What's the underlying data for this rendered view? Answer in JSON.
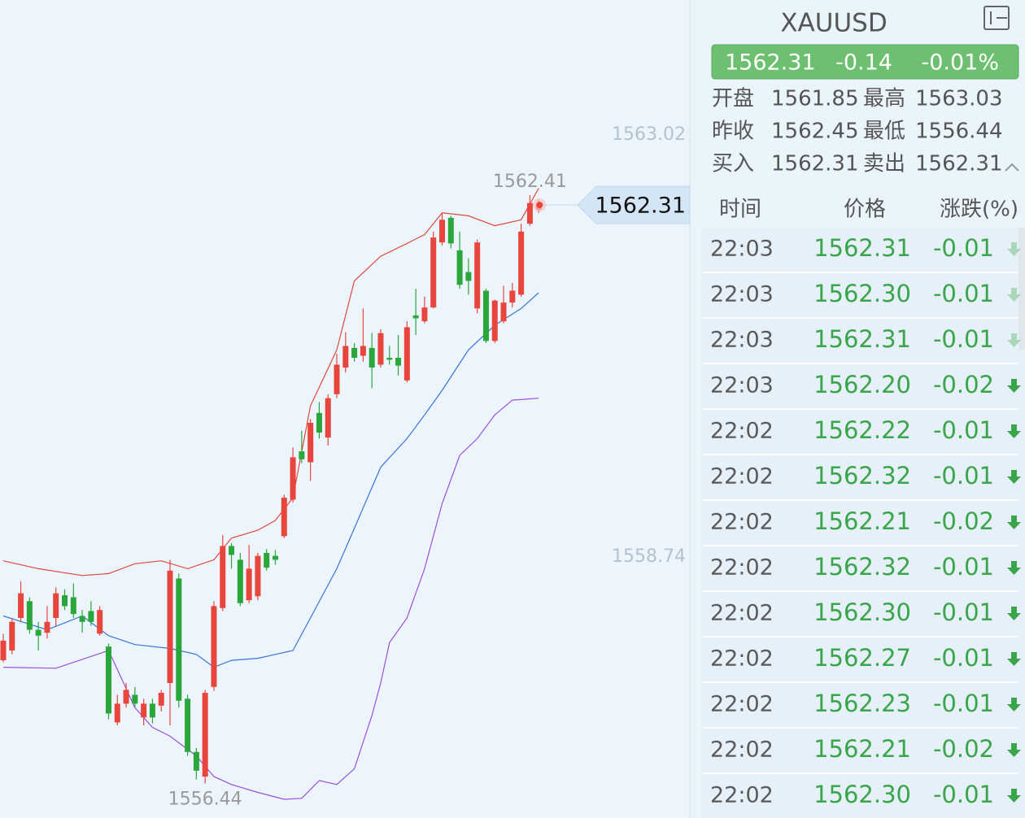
{
  "chart_data": {
    "type": "candlestick",
    "open": [
      1557.69,
      1557.79,
      1558.12,
      1558.29,
      1558.0,
      1557.97,
      1558.12,
      1558.35,
      1558.33,
      1558.14,
      1558.19,
      1557.96,
      1557.83,
      1557.06,
      1557.25,
      1557.34,
      1557.11,
      1557.25,
      1557.23,
      1557.46,
      1558.52,
      1557.3,
      1556.76,
      1556.51,
      1557.42,
      1558.22,
      1558.85,
      1558.71,
      1558.3,
      1558.34,
      1558.78,
      1558.75,
      1558.95,
      1559.32,
      1559.81,
      1559.7,
      1560.2,
      1559.95,
      1560.39,
      1560.66,
      1560.86,
      1560.78,
      1560.86,
      1560.69,
      1560.76,
      1560.76,
      1560.53,
      1561.19,
      1561.13,
      1561.27,
      1561.93,
      1562.18,
      1561.85,
      1561.63,
      1561.26,
      1561.44,
      1560.93,
      1561.13,
      1561.32,
      1561.4,
      1562.12,
      1562.26
    ],
    "high": [
      1557.96,
      1558.12,
      1558.49,
      1558.33,
      1558.08,
      1558.24,
      1558.43,
      1558.41,
      1558.47,
      1558.2,
      1558.29,
      1558.24,
      1557.86,
      1557.34,
      1557.46,
      1557.42,
      1557.3,
      1557.3,
      1557.39,
      1558.71,
      1558.57,
      1557.34,
      1556.8,
      1557.39,
      1558.29,
      1558.96,
      1558.88,
      1558.78,
      1558.86,
      1558.78,
      1558.82,
      1558.81,
      1559.37,
      1559.85,
      1560.02,
      1560.14,
      1560.31,
      1560.39,
      1560.8,
      1561.02,
      1560.91,
      1561.26,
      1561.01,
      1561.05,
      1560.88,
      1560.99,
      1561.13,
      1561.46,
      1561.38,
      1562.04,
      1562.23,
      1562.2,
      1562.04,
      1561.77,
      1561.96,
      1561.46,
      1561.35,
      1561.49,
      1561.52,
      1562.12,
      1562.41,
      1562.37
    ],
    "low": [
      1557.67,
      1557.75,
      1558.08,
      1557.96,
      1557.79,
      1557.91,
      1558.04,
      1558.2,
      1558.12,
      1557.97,
      1558.04,
      1557.94,
      1557.09,
      1557.03,
      1557.21,
      1557.21,
      1557.03,
      1557.05,
      1557.17,
      1557.03,
      1557.21,
      1556.72,
      1556.48,
      1556.44,
      1557.38,
      1558.19,
      1558.62,
      1558.24,
      1558.27,
      1558.3,
      1558.6,
      1558.66,
      1558.93,
      1559.29,
      1559.69,
      1559.51,
      1559.94,
      1559.87,
      1560.35,
      1560.61,
      1560.72,
      1560.72,
      1560.45,
      1560.66,
      1560.69,
      1560.58,
      1560.51,
      1560.99,
      1561.11,
      1561.26,
      1561.9,
      1561.87,
      1561.46,
      1561.4,
      1561.21,
      1560.91,
      1560.91,
      1561.11,
      1561.27,
      1561.38,
      1562.1,
      1562.23
    ],
    "close": [
      1557.89,
      1558.08,
      1558.37,
      1558.0,
      1557.94,
      1558.08,
      1558.37,
      1558.24,
      1558.16,
      1558.08,
      1558.08,
      1558.2,
      1557.15,
      1557.25,
      1557.39,
      1557.25,
      1557.25,
      1557.11,
      1557.36,
      1558.6,
      1557.28,
      1556.76,
      1556.57,
      1557.36,
      1558.24,
      1558.85,
      1558.76,
      1558.27,
      1558.62,
      1558.75,
      1558.63,
      1558.71,
      1559.34,
      1559.75,
      1559.73,
      1560.1,
      1560.0,
      1560.35,
      1560.69,
      1560.88,
      1560.76,
      1560.88,
      1560.66,
      1561.01,
      1560.74,
      1560.68,
      1561.07,
      1561.16,
      1561.27,
      1561.98,
      1562.16,
      1561.92,
      1561.5,
      1561.54,
      1561.93,
      1560.93,
      1561.34,
      1561.32,
      1561.44,
      1562.04,
      1562.33,
      1562.31
    ],
    "up_color": "#e8453c",
    "down_color": "#2aa63a",
    "bands": [
      {
        "color": "#e0473a",
        "x": [
          0,
          4,
          9,
          12,
          15,
          18,
          21,
          24,
          26,
          29,
          31,
          33,
          35,
          38,
          40,
          43,
          46,
          48,
          50,
          53,
          56,
          59,
          61
        ],
        "values": [
          1558.7,
          1558.62,
          1558.55,
          1558.57,
          1558.67,
          1558.7,
          1558.62,
          1558.71,
          1558.93,
          1559.01,
          1559.11,
          1559.34,
          1560.27,
          1560.84,
          1561.54,
          1561.79,
          1561.92,
          1562.01,
          1562.23,
          1562.2,
          1562.1,
          1562.16,
          1562.48
        ]
      },
      {
        "color": "#3a73d9",
        "x": [
          0,
          5,
          9,
          12,
          15,
          19,
          22,
          24,
          26,
          29,
          31,
          33,
          35,
          38,
          40,
          43,
          46,
          48,
          50,
          53,
          56,
          59,
          61
        ],
        "values": [
          1558.14,
          1558.0,
          1558.14,
          1557.94,
          1557.85,
          1557.81,
          1557.75,
          1557.62,
          1557.69,
          1557.71,
          1557.75,
          1557.79,
          1558.12,
          1558.62,
          1559.03,
          1559.65,
          1559.94,
          1560.18,
          1560.43,
          1560.84,
          1561.09,
          1561.26,
          1561.42
        ]
      },
      {
        "color": "#9b4fdc",
        "x": [
          0,
          6,
          12,
          15,
          17,
          19,
          22,
          24,
          26,
          29,
          32,
          34,
          36,
          38,
          40,
          42,
          43,
          44,
          46,
          48,
          50,
          52,
          54,
          56,
          58,
          61
        ],
        "values": [
          1557.62,
          1557.61,
          1557.79,
          1557.21,
          1557.01,
          1556.92,
          1556.72,
          1556.51,
          1556.43,
          1556.35,
          1556.28,
          1556.29,
          1556.47,
          1556.43,
          1556.59,
          1557.13,
          1557.46,
          1557.87,
          1558.12,
          1558.62,
          1559.28,
          1559.77,
          1559.94,
          1560.18,
          1560.33,
          1560.35
        ]
      }
    ],
    "ylim": [
      1556.09,
      1564.39
    ],
    "yticks": [
      1563.02,
      1558.74
    ]
  },
  "panel": {
    "symbol": "XAUUSD",
    "quote": {
      "price": "1562.31",
      "change": "-0.14",
      "percent": "-0.01%"
    },
    "stats": [
      [
        "开盘",
        "1561.85",
        "最高",
        "1563.03"
      ],
      [
        "昨收",
        "1562.45",
        "最低",
        "1556.44"
      ],
      [
        "买入",
        "1562.31",
        "卖出",
        "1562.31"
      ]
    ],
    "headers": [
      "时间",
      "价格",
      "涨跌(%)"
    ],
    "ticks": [
      [
        "22:03",
        "1562.31",
        "-0.01"
      ],
      [
        "22:03",
        "1562.30",
        "-0.01"
      ],
      [
        "22:03",
        "1562.31",
        "-0.01"
      ],
      [
        "22:03",
        "1562.20",
        "-0.02"
      ],
      [
        "22:02",
        "1562.22",
        "-0.01"
      ],
      [
        "22:02",
        "1562.32",
        "-0.01"
      ],
      [
        "22:02",
        "1562.21",
        "-0.02"
      ],
      [
        "22:02",
        "1562.32",
        "-0.01"
      ],
      [
        "22:02",
        "1562.30",
        "-0.01"
      ],
      [
        "22:02",
        "1562.27",
        "-0.01"
      ],
      [
        "22:02",
        "1562.23",
        "-0.01"
      ],
      [
        "22:02",
        "1562.21",
        "-0.02"
      ],
      [
        "22:02",
        "1562.30",
        "-0.01"
      ]
    ]
  }
}
